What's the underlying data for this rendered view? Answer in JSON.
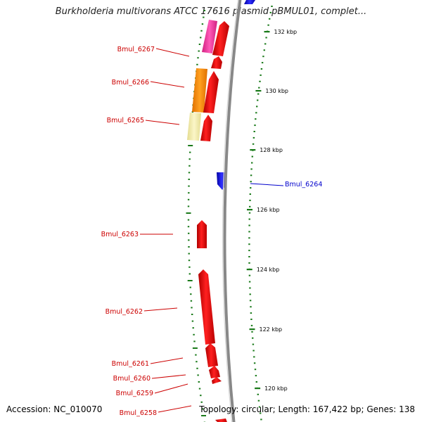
{
  "title": "Burkholderia multivorans ATCC 17616 plasmid pBMUL01, complet...",
  "footer": {
    "accession": "Accession: NC_010070",
    "topology": "Topology: circular; Length: 167,422 bp; Genes: 138"
  },
  "ticks": [
    {
      "label": "132 kbp",
      "y": 47
    },
    {
      "label": "130 kbp",
      "y": 131
    },
    {
      "label": "128 kbp",
      "y": 215
    },
    {
      "label": "126 kbp",
      "y": 300
    },
    {
      "label": "124 kbp",
      "y": 385
    },
    {
      "label": "122 kbp",
      "y": 470
    },
    {
      "label": "120 kbp",
      "y": 554
    }
  ],
  "gene_labels": [
    {
      "name": "Bmul_6267",
      "color": "#cc0000"
    },
    {
      "name": "Bmul_6266",
      "color": "#cc0000"
    },
    {
      "name": "Bmul_6265",
      "color": "#cc0000"
    },
    {
      "name": "Bmul_6264",
      "color": "#0000cc"
    },
    {
      "name": "Bmul_6263",
      "color": "#cc0000"
    },
    {
      "name": "Bmul_6262",
      "color": "#cc0000"
    },
    {
      "name": "Bmul_6261",
      "color": "#cc0000"
    },
    {
      "name": "Bmul_6260",
      "color": "#cc0000"
    },
    {
      "name": "Bmul_6259",
      "color": "#cc0000"
    },
    {
      "name": "Bmul_6258",
      "color": "#cc0000"
    }
  ],
  "colors": {
    "forward_cds": "#ee0000",
    "reverse_cds": "#1a1aee",
    "backbone": "#8a8a8a",
    "gc_skew": "#1a7a1a",
    "cog_pink": "#ee3fa0",
    "cog_orange": "#ff8c00",
    "cog_yellow": "#f0e8a0"
  }
}
